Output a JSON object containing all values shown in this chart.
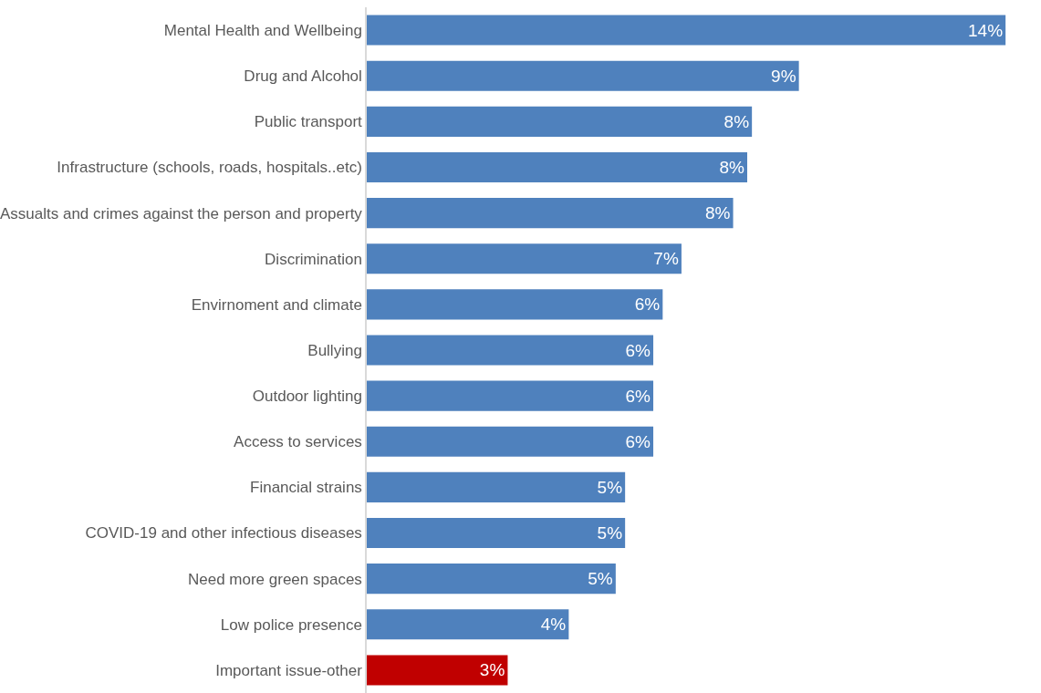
{
  "chart_data": {
    "type": "bar",
    "orientation": "horizontal",
    "categories": [
      "Mental Health and Wellbeing",
      "Drug and Alcohol",
      "Public transport",
      "Infrastructure (schools, roads, hospitals..etc)",
      "Assualts and crimes against the person and property",
      "Discrimination",
      "Envirnoment and climate",
      "Bullying",
      "Outdoor lighting",
      "Access to services",
      "Financial strains",
      "COVID-19 and other infectious diseases",
      "Need more green spaces",
      "Low police presence",
      "Important issue-other"
    ],
    "values": [
      13.6,
      9.2,
      8.2,
      8.1,
      7.8,
      6.7,
      6.3,
      6.1,
      6.1,
      6.1,
      5.5,
      5.5,
      5.3,
      4.3,
      3.0
    ],
    "value_labels": [
      "14%",
      "9%",
      "8%",
      "8%",
      "8%",
      "7%",
      "6%",
      "6%",
      "6%",
      "6%",
      "5%",
      "5%",
      "5%",
      "4%",
      "3%"
    ],
    "colors": [
      "#4f81bd",
      "#4f81bd",
      "#4f81bd",
      "#4f81bd",
      "#4f81bd",
      "#4f81bd",
      "#4f81bd",
      "#4f81bd",
      "#4f81bd",
      "#4f81bd",
      "#4f81bd",
      "#4f81bd",
      "#4f81bd",
      "#4f81bd",
      "#c00000"
    ],
    "legend": false
  }
}
